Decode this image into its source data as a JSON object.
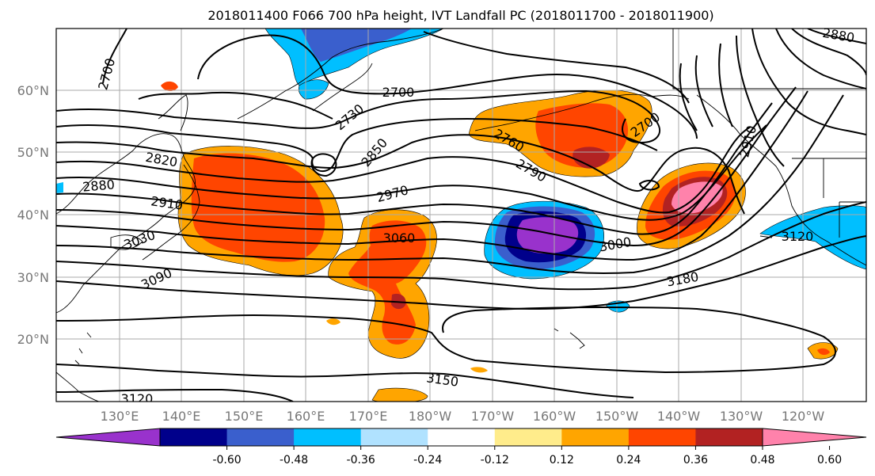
{
  "title": "2018011400 F066 700 hPa height, IVT Landfall PC (2018011700 - 2018011900)",
  "lat_labels": [
    "60°N",
    "50°N",
    "40°N",
    "30°N",
    "20°N"
  ],
  "lon_labels": [
    "130°E",
    "140°E",
    "150°E",
    "160°E",
    "170°E",
    "180°W",
    "170°W",
    "160°W",
    "150°W",
    "140°W",
    "130°W",
    "120°W"
  ],
  "contour_labels": [
    "2700",
    "2700",
    "2700",
    "2730",
    "2760",
    "2790",
    "2820",
    "2850",
    "2880",
    "2880",
    "2910",
    "2910",
    "2970",
    "3000",
    "3030",
    "3060",
    "3090",
    "3120",
    "3120",
    "3150",
    "3180"
  ],
  "colorbar": {
    "tick_labels": [
      "-0.60",
      "-0.48",
      "-0.36",
      "-0.24",
      "-0.12",
      "0.12",
      "0.24",
      "0.36",
      "0.48",
      "0.60"
    ],
    "colors": [
      "#9932cc",
      "#00008b",
      "#3a5fcd",
      "#00bfff",
      "#b0e2ff",
      "#ffffff",
      "#ffec8b",
      "#ffa500",
      "#ff4500",
      "#b22222",
      "#ff82ab"
    ]
  }
}
